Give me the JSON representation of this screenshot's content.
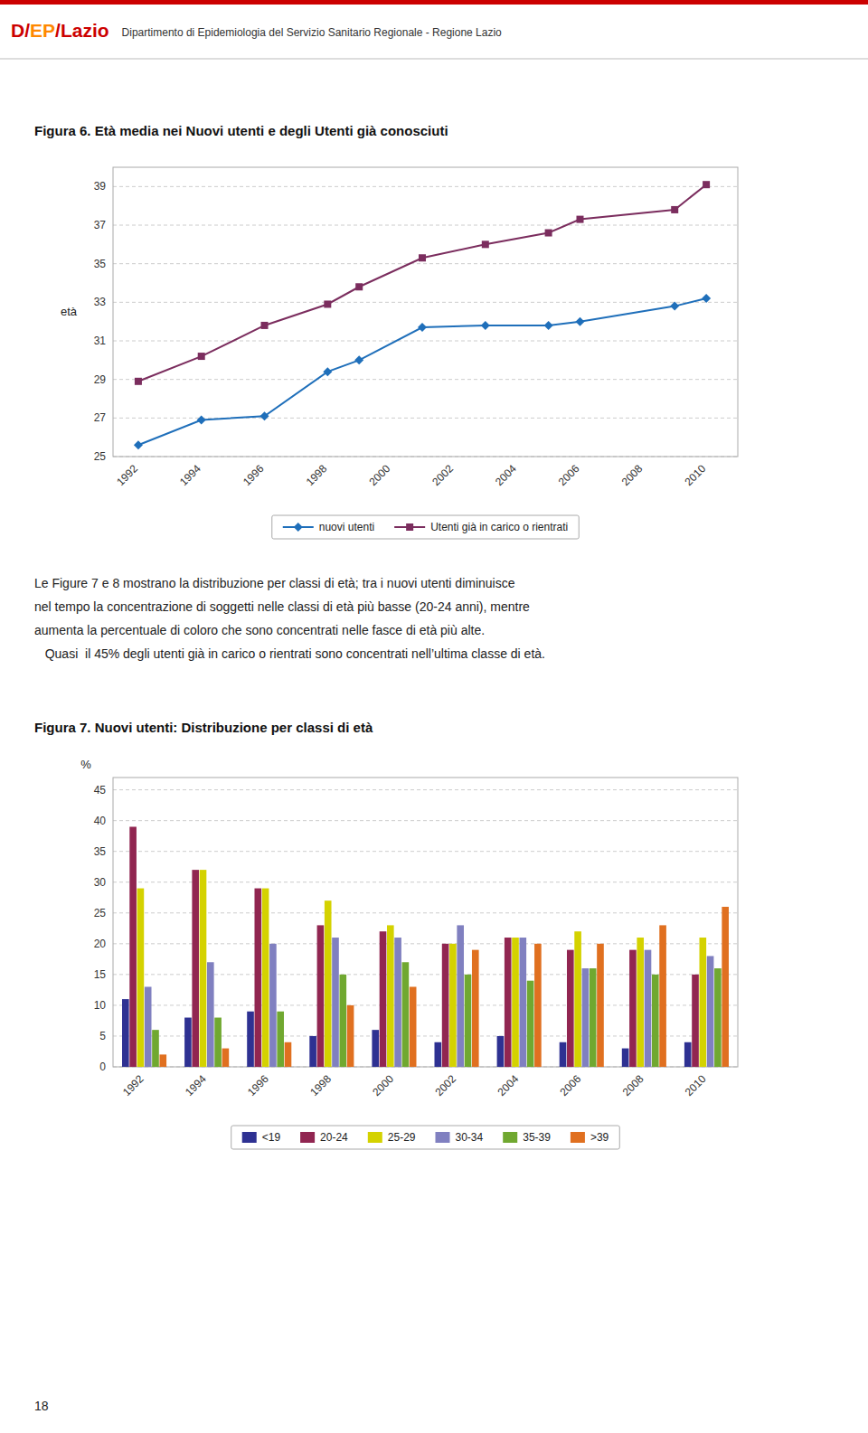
{
  "page": {
    "logo": [
      {
        "text": "D",
        "color": "#cc0000"
      },
      {
        "text": "/",
        "color": "#cc0000"
      },
      {
        "text": "EP",
        "color": "#ff8800"
      },
      {
        "text": "/",
        "color": "#cc0000"
      },
      {
        "text": "Lazio",
        "color": "#cc0000"
      }
    ],
    "header_subtitle": "Dipartimento di Epidemiologia del Servizio Sanitario Regionale - Regione Lazio",
    "text": [
      "Le Figure 7 e 8 mostrano la distribuzione per classi di età; tra i nuovi utenti diminuisce",
      "nel tempo la concentrazione di soggetti nelle classi di età più basse (20-24 anni), mentre",
      "aumenta la percentuale di coloro che sono concentrati nelle fasce di età più alte.",
      "   Quasi  il 45% degli utenti già in carico o rientrati sono concentrati nell’ultima classe di età."
    ],
    "page_number": "18"
  },
  "chart_data": [
    {
      "type": "line",
      "title": "Figura 6. Età media nei Nuovi utenti e degli Utenti già conosciuti",
      "ylabel": "età",
      "x": [
        1992,
        1994,
        1996,
        1998,
        1999,
        2001,
        2003,
        2005,
        2006,
        2009,
        2010
      ],
      "xlim": [
        1991.2,
        2011.0
      ],
      "xticks": [
        1992,
        1994,
        1996,
        1998,
        2000,
        2002,
        2004,
        2006,
        2008,
        2010
      ],
      "ylim": [
        25,
        40
      ],
      "yticks": [
        25,
        27,
        29,
        31,
        33,
        35,
        37,
        39
      ],
      "grid": true,
      "legend": "bottom",
      "series": [
        {
          "name": "nuovi utenti",
          "color": "#1f6fba",
          "marker": "diamond",
          "values": [
            25.6,
            26.9,
            27.1,
            29.4,
            30.0,
            31.7,
            31.8,
            31.8,
            32.0,
            32.8,
            33.2
          ]
        },
        {
          "name": "Utenti già in carico o rientrati",
          "color": "#7b2d5e",
          "marker": "square",
          "values": [
            28.9,
            30.2,
            31.8,
            32.9,
            33.8,
            35.3,
            36.0,
            36.6,
            37.3,
            37.8,
            39.1
          ]
        }
      ]
    },
    {
      "type": "bar",
      "title": "Figura 7. Nuovi utenti: Distribuzione per classi di età",
      "ylabel": "%",
      "categories": [
        "1992",
        "1994",
        "1996",
        "1998",
        "2000",
        "2002",
        "2004",
        "2006",
        "2008",
        "2010"
      ],
      "ylim": [
        0,
        47
      ],
      "yticks": [
        0,
        5,
        10,
        15,
        20,
        25,
        30,
        35,
        40,
        45
      ],
      "grid": true,
      "legend": "bottom",
      "series": [
        {
          "name": "<19",
          "color": "#2e3192",
          "values": [
            11,
            8,
            9,
            5,
            6,
            4,
            5,
            4,
            3,
            4
          ]
        },
        {
          "name": "20-24",
          "color": "#912651",
          "values": [
            39,
            32,
            29,
            23,
            22,
            20,
            21,
            19,
            19,
            15
          ]
        },
        {
          "name": "25-29",
          "color": "#d4d200",
          "values": [
            29,
            32,
            29,
            27,
            23,
            20,
            21,
            22,
            21,
            21
          ]
        },
        {
          "name": "30-34",
          "color": "#8080c0",
          "values": [
            13,
            17,
            20,
            21,
            21,
            23,
            21,
            16,
            19,
            18
          ]
        },
        {
          "name": "35-39",
          "color": "#70a830",
          "values": [
            6,
            8,
            9,
            15,
            17,
            15,
            14,
            16,
            15,
            16
          ]
        },
        {
          "name": ">39",
          "color": "#e07020",
          "values": [
            2,
            3,
            4,
            10,
            13,
            19,
            20,
            20,
            23,
            26
          ]
        }
      ]
    }
  ]
}
